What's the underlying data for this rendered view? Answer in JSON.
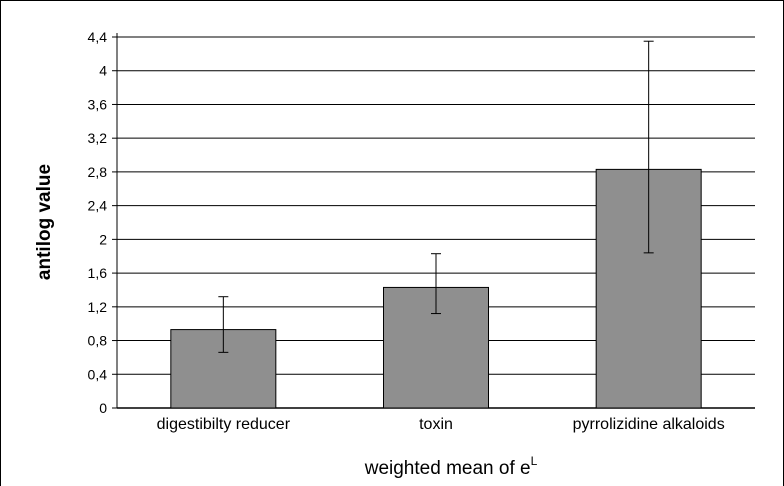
{
  "chart_data": {
    "type": "bar",
    "title": "",
    "xlabel": "weighted mean of e",
    "xlabel_superscript": "L",
    "ylabel": "antilog value",
    "categories": [
      "digestibilty reducer",
      "toxin",
      "pyrrolizidine alkaloids"
    ],
    "values": [
      0.93,
      1.43,
      2.83
    ],
    "error_low": [
      0.66,
      1.12,
      1.84
    ],
    "error_high": [
      1.32,
      1.83,
      4.35
    ],
    "ylim": [
      0,
      4.4
    ],
    "yticks": [
      "0",
      "0,4",
      "0,8",
      "1,2",
      "1,6",
      "2",
      "2,4",
      "2,8",
      "3,2",
      "3,6",
      "4",
      "4,4"
    ],
    "grid": true,
    "legend": "none",
    "colors": {
      "bar": "#8f8f8f",
      "grid": "#000000",
      "frame": "#000000"
    }
  }
}
